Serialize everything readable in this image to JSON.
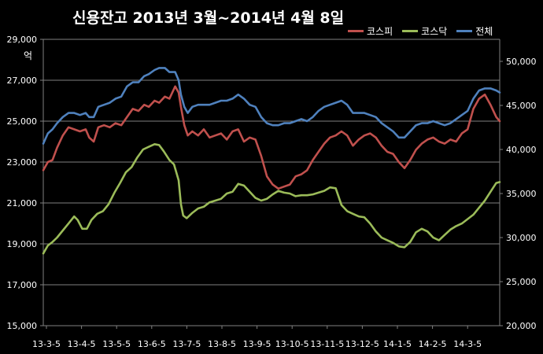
{
  "chart_data": {
    "type": "line",
    "title": "신용잔고  2013년 3월~2014년 4월 8일",
    "y_left_unit": "억",
    "y_left_ticks": [
      "15,000",
      "17,000",
      "19,000",
      "21,000",
      "23,000",
      "25,000",
      "27,000",
      "29,000"
    ],
    "y_left_range": [
      15000,
      29000
    ],
    "y_right_ticks": [
      "20,000",
      "25,000",
      "30,000",
      "35,000",
      "40,000",
      "45,000",
      "50,000"
    ],
    "y_right_range": [
      20000,
      52500
    ],
    "x_ticks": [
      "13-3-5",
      "13-4-5",
      "13-5-5",
      "13-6-5",
      "13-7-5",
      "13-8-5",
      "13-9-5",
      "13-10-5",
      "13-11-5",
      "13-12-5",
      "14-1-5",
      "14-2-5",
      "14-3-5"
    ],
    "grid": true,
    "legend_position": "top-right",
    "series": [
      {
        "name": "코스피",
        "axis": "left",
        "color": "#c0504d",
        "points": [
          [
            0,
            22600
          ],
          [
            4,
            23000
          ],
          [
            8,
            23100
          ],
          [
            12,
            23700
          ],
          [
            17,
            24300
          ],
          [
            22,
            24700
          ],
          [
            27,
            24600
          ],
          [
            32,
            24500
          ],
          [
            37,
            24600
          ],
          [
            40,
            24200
          ],
          [
            44,
            24000
          ],
          [
            48,
            24700
          ],
          [
            53,
            24800
          ],
          [
            58,
            24700
          ],
          [
            63,
            24900
          ],
          [
            68,
            24800
          ],
          [
            73,
            25200
          ],
          [
            78,
            25600
          ],
          [
            83,
            25500
          ],
          [
            88,
            25800
          ],
          [
            92,
            25700
          ],
          [
            97,
            26000
          ],
          [
            101,
            25900
          ],
          [
            106,
            26200
          ],
          [
            110,
            26100
          ],
          [
            115,
            26700
          ],
          [
            118,
            26400
          ],
          [
            120,
            25700
          ],
          [
            123,
            24800
          ],
          [
            126,
            24300
          ],
          [
            130,
            24500
          ],
          [
            135,
            24300
          ],
          [
            140,
            24600
          ],
          [
            145,
            24200
          ],
          [
            150,
            24300
          ],
          [
            155,
            24400
          ],
          [
            160,
            24100
          ],
          [
            165,
            24500
          ],
          [
            170,
            24600
          ],
          [
            175,
            24000
          ],
          [
            180,
            24200
          ],
          [
            185,
            24100
          ],
          [
            190,
            23300
          ],
          [
            195,
            22300
          ],
          [
            200,
            21900
          ],
          [
            205,
            21700
          ],
          [
            210,
            21800
          ],
          [
            215,
            21900
          ],
          [
            220,
            22300
          ],
          [
            225,
            22400
          ],
          [
            230,
            22600
          ],
          [
            235,
            23100
          ],
          [
            240,
            23500
          ],
          [
            245,
            23900
          ],
          [
            250,
            24200
          ],
          [
            255,
            24300
          ],
          [
            260,
            24500
          ],
          [
            265,
            24300
          ],
          [
            270,
            23800
          ],
          [
            275,
            24100
          ],
          [
            280,
            24300
          ],
          [
            285,
            24400
          ],
          [
            290,
            24200
          ],
          [
            295,
            23800
          ],
          [
            300,
            23500
          ],
          [
            305,
            23400
          ],
          [
            310,
            23000
          ],
          [
            315,
            22700
          ],
          [
            320,
            23100
          ],
          [
            325,
            23600
          ],
          [
            330,
            23900
          ],
          [
            335,
            24100
          ],
          [
            340,
            24200
          ],
          [
            345,
            24000
          ],
          [
            350,
            23900
          ],
          [
            355,
            24100
          ],
          [
            360,
            24000
          ],
          [
            365,
            24400
          ],
          [
            370,
            24600
          ],
          [
            375,
            25600
          ],
          [
            380,
            26100
          ],
          [
            385,
            26300
          ],
          [
            390,
            25800
          ],
          [
            395,
            25200
          ],
          [
            398,
            25000
          ]
        ]
      },
      {
        "name": "코스닥",
        "axis": "right",
        "color": "#9bbb59",
        "points": [
          [
            0,
            28200
          ],
          [
            4,
            29100
          ],
          [
            8,
            29500
          ],
          [
            12,
            30000
          ],
          [
            17,
            30800
          ],
          [
            22,
            31600
          ],
          [
            27,
            32400
          ],
          [
            30,
            32000
          ],
          [
            34,
            31000
          ],
          [
            38,
            31000
          ],
          [
            42,
            32000
          ],
          [
            47,
            32700
          ],
          [
            52,
            33000
          ],
          [
            57,
            33800
          ],
          [
            62,
            35100
          ],
          [
            67,
            36200
          ],
          [
            72,
            37400
          ],
          [
            77,
            38000
          ],
          [
            82,
            39100
          ],
          [
            87,
            40000
          ],
          [
            92,
            40300
          ],
          [
            97,
            40600
          ],
          [
            101,
            40500
          ],
          [
            105,
            39800
          ],
          [
            110,
            38800
          ],
          [
            114,
            38300
          ],
          [
            118,
            36500
          ],
          [
            120,
            33800
          ],
          [
            122,
            32500
          ],
          [
            125,
            32200
          ],
          [
            130,
            32800
          ],
          [
            135,
            33300
          ],
          [
            140,
            33500
          ],
          [
            145,
            34000
          ],
          [
            150,
            34200
          ],
          [
            155,
            34400
          ],
          [
            160,
            35000
          ],
          [
            165,
            35200
          ],
          [
            170,
            36100
          ],
          [
            175,
            35900
          ],
          [
            180,
            35200
          ],
          [
            185,
            34500
          ],
          [
            190,
            34200
          ],
          [
            195,
            34400
          ],
          [
            200,
            34900
          ],
          [
            205,
            35300
          ],
          [
            210,
            35100
          ],
          [
            215,
            35000
          ],
          [
            220,
            34700
          ],
          [
            225,
            34800
          ],
          [
            230,
            34800
          ],
          [
            235,
            34900
          ],
          [
            240,
            35100
          ],
          [
            245,
            35300
          ],
          [
            250,
            35700
          ],
          [
            255,
            35600
          ],
          [
            260,
            33700
          ],
          [
            265,
            33000
          ],
          [
            270,
            32700
          ],
          [
            275,
            32400
          ],
          [
            280,
            32300
          ],
          [
            285,
            31600
          ],
          [
            290,
            30700
          ],
          [
            295,
            30000
          ],
          [
            300,
            29700
          ],
          [
            305,
            29400
          ],
          [
            310,
            29000
          ],
          [
            315,
            28900
          ],
          [
            320,
            29500
          ],
          [
            325,
            30600
          ],
          [
            330,
            31000
          ],
          [
            335,
            30700
          ],
          [
            340,
            30000
          ],
          [
            345,
            29700
          ],
          [
            350,
            30300
          ],
          [
            355,
            30900
          ],
          [
            360,
            31300
          ],
          [
            365,
            31600
          ],
          [
            370,
            32100
          ],
          [
            375,
            32600
          ],
          [
            380,
            33400
          ],
          [
            385,
            34200
          ],
          [
            390,
            35200
          ],
          [
            395,
            36200
          ],
          [
            398,
            36300
          ]
        ]
      },
      {
        "name": "전체",
        "axis": "left",
        "color": "#4f81bd",
        "points": [
          [
            0,
            23900
          ],
          [
            4,
            24400
          ],
          [
            8,
            24600
          ],
          [
            12,
            24900
          ],
          [
            17,
            25200
          ],
          [
            22,
            25400
          ],
          [
            27,
            25400
          ],
          [
            32,
            25300
          ],
          [
            37,
            25400
          ],
          [
            40,
            25200
          ],
          [
            44,
            25200
          ],
          [
            48,
            25700
          ],
          [
            53,
            25800
          ],
          [
            58,
            25900
          ],
          [
            63,
            26100
          ],
          [
            68,
            26200
          ],
          [
            73,
            26700
          ],
          [
            78,
            26900
          ],
          [
            83,
            26900
          ],
          [
            88,
            27200
          ],
          [
            92,
            27300
          ],
          [
            97,
            27500
          ],
          [
            101,
            27600
          ],
          [
            106,
            27600
          ],
          [
            110,
            27400
          ],
          [
            115,
            27400
          ],
          [
            118,
            27000
          ],
          [
            120,
            26300
          ],
          [
            123,
            25700
          ],
          [
            126,
            25400
          ],
          [
            130,
            25700
          ],
          [
            135,
            25800
          ],
          [
            140,
            25800
          ],
          [
            145,
            25800
          ],
          [
            150,
            25900
          ],
          [
            155,
            26000
          ],
          [
            160,
            26000
          ],
          [
            165,
            26100
          ],
          [
            170,
            26300
          ],
          [
            175,
            26100
          ],
          [
            180,
            25800
          ],
          [
            185,
            25700
          ],
          [
            190,
            25200
          ],
          [
            195,
            24900
          ],
          [
            200,
            24800
          ],
          [
            205,
            24800
          ],
          [
            210,
            24900
          ],
          [
            215,
            24900
          ],
          [
            220,
            25000
          ],
          [
            225,
            25100
          ],
          [
            230,
            25000
          ],
          [
            235,
            25200
          ],
          [
            240,
            25500
          ],
          [
            245,
            25700
          ],
          [
            250,
            25800
          ],
          [
            255,
            25900
          ],
          [
            260,
            26000
          ],
          [
            265,
            25800
          ],
          [
            270,
            25400
          ],
          [
            275,
            25400
          ],
          [
            280,
            25400
          ],
          [
            285,
            25300
          ],
          [
            290,
            25200
          ],
          [
            295,
            24900
          ],
          [
            300,
            24700
          ],
          [
            305,
            24500
          ],
          [
            310,
            24200
          ],
          [
            315,
            24200
          ],
          [
            320,
            24500
          ],
          [
            325,
            24800
          ],
          [
            330,
            24900
          ],
          [
            335,
            24900
          ],
          [
            340,
            25000
          ],
          [
            345,
            24900
          ],
          [
            350,
            24800
          ],
          [
            355,
            24900
          ],
          [
            360,
            25100
          ],
          [
            365,
            25300
          ],
          [
            370,
            25500
          ],
          [
            375,
            26100
          ],
          [
            380,
            26500
          ],
          [
            385,
            26600
          ],
          [
            390,
            26600
          ],
          [
            395,
            26500
          ],
          [
            398,
            26400
          ]
        ]
      }
    ]
  }
}
